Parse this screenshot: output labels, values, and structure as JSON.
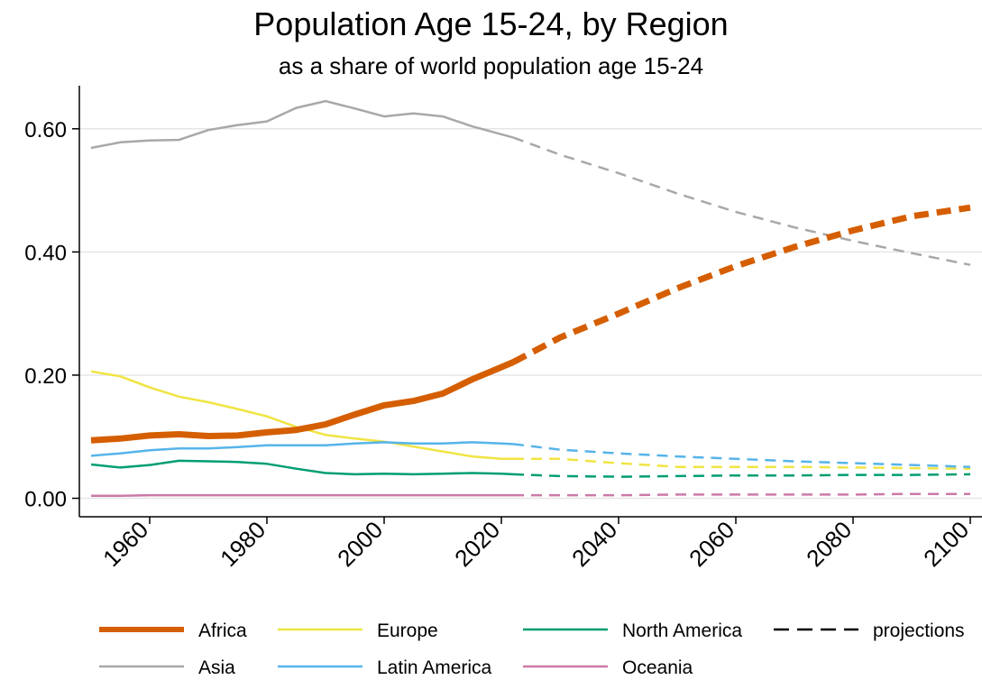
{
  "chart_data": {
    "type": "line",
    "title": "Population Age 15-24, by Region",
    "subtitle": "as a share of world population age 15-24",
    "xlim": [
      1948,
      2102
    ],
    "ylim": [
      -0.03,
      0.67
    ],
    "xticks": [
      1960,
      1980,
      2000,
      2020,
      2040,
      2060,
      2080,
      2100
    ],
    "yticks": [
      0.0,
      0.2,
      0.4,
      0.6
    ],
    "ytick_labels": [
      "0.00",
      "0.20",
      "0.40",
      "0.60"
    ],
    "grid": "horizontal",
    "legend": "bottom",
    "projection_start": 2022,
    "series": [
      {
        "name": "Africa",
        "color": "#d55e00",
        "width": 7,
        "x": [
          1950,
          1955,
          1960,
          1965,
          1970,
          1975,
          1980,
          1985,
          1990,
          1995,
          2000,
          2005,
          2010,
          2015,
          2020,
          2022,
          2030,
          2040,
          2050,
          2060,
          2070,
          2080,
          2090,
          2100
        ],
        "values": [
          0.094,
          0.097,
          0.102,
          0.104,
          0.101,
          0.102,
          0.107,
          0.111,
          0.12,
          0.136,
          0.151,
          0.158,
          0.17,
          0.193,
          0.213,
          0.221,
          0.261,
          0.3,
          0.341,
          0.377,
          0.408,
          0.435,
          0.458,
          0.472
        ]
      },
      {
        "name": "Asia",
        "color": "#a8a8a8",
        "width": 2.5,
        "x": [
          1950,
          1955,
          1960,
          1965,
          1970,
          1975,
          1980,
          1985,
          1990,
          1995,
          2000,
          2005,
          2010,
          2015,
          2020,
          2022,
          2030,
          2040,
          2050,
          2060,
          2070,
          2080,
          2090,
          2100
        ],
        "values": [
          0.569,
          0.578,
          0.581,
          0.582,
          0.598,
          0.606,
          0.612,
          0.634,
          0.645,
          0.633,
          0.62,
          0.625,
          0.62,
          0.604,
          0.591,
          0.586,
          0.558,
          0.528,
          0.495,
          0.465,
          0.44,
          0.418,
          0.398,
          0.379
        ]
      },
      {
        "name": "Europe",
        "color": "#f0e442",
        "width": 2.5,
        "x": [
          1950,
          1955,
          1960,
          1965,
          1970,
          1975,
          1980,
          1985,
          1990,
          1995,
          2000,
          2005,
          2010,
          2015,
          2020,
          2022,
          2030,
          2040,
          2050,
          2060,
          2070,
          2080,
          2090,
          2100
        ],
        "values": [
          0.206,
          0.198,
          0.18,
          0.165,
          0.156,
          0.145,
          0.133,
          0.116,
          0.103,
          0.097,
          0.092,
          0.084,
          0.076,
          0.068,
          0.064,
          0.064,
          0.064,
          0.057,
          0.051,
          0.051,
          0.051,
          0.05,
          0.049,
          0.048
        ]
      },
      {
        "name": "Latin America",
        "color": "#56b4e9",
        "width": 2.5,
        "x": [
          1950,
          1955,
          1960,
          1965,
          1970,
          1975,
          1980,
          1985,
          1990,
          1995,
          2000,
          2005,
          2010,
          2015,
          2020,
          2022,
          2030,
          2040,
          2050,
          2060,
          2070,
          2080,
          2090,
          2100
        ],
        "values": [
          0.069,
          0.073,
          0.078,
          0.081,
          0.081,
          0.083,
          0.086,
          0.086,
          0.086,
          0.089,
          0.091,
          0.089,
          0.089,
          0.091,
          0.089,
          0.088,
          0.079,
          0.073,
          0.068,
          0.064,
          0.06,
          0.057,
          0.054,
          0.051
        ]
      },
      {
        "name": "North America",
        "color": "#009e73",
        "width": 2.5,
        "x": [
          1950,
          1955,
          1960,
          1965,
          1970,
          1975,
          1980,
          1985,
          1990,
          1995,
          2000,
          2005,
          2010,
          2015,
          2020,
          2022,
          2030,
          2040,
          2050,
          2060,
          2070,
          2080,
          2090,
          2100
        ],
        "values": [
          0.055,
          0.05,
          0.054,
          0.061,
          0.06,
          0.059,
          0.056,
          0.048,
          0.041,
          0.039,
          0.04,
          0.039,
          0.04,
          0.041,
          0.04,
          0.039,
          0.036,
          0.035,
          0.036,
          0.037,
          0.037,
          0.038,
          0.038,
          0.039
        ]
      },
      {
        "name": "Oceania",
        "color": "#cc79a7",
        "width": 2.5,
        "x": [
          1950,
          1955,
          1960,
          1965,
          1970,
          1975,
          1980,
          1985,
          1990,
          1995,
          2000,
          2005,
          2010,
          2015,
          2020,
          2022,
          2030,
          2040,
          2050,
          2060,
          2070,
          2080,
          2090,
          2100
        ],
        "values": [
          0.004,
          0.004,
          0.005,
          0.005,
          0.005,
          0.005,
          0.005,
          0.005,
          0.005,
          0.005,
          0.005,
          0.005,
          0.005,
          0.005,
          0.005,
          0.005,
          0.005,
          0.005,
          0.006,
          0.006,
          0.006,
          0.006,
          0.007,
          0.007
        ]
      }
    ],
    "legend_items": [
      {
        "label": "Africa",
        "color": "#d55e00",
        "style": "solid",
        "width": 6
      },
      {
        "label": "Europe",
        "color": "#f0e442",
        "style": "solid",
        "width": 2.5
      },
      {
        "label": "North America",
        "color": "#009e73",
        "style": "solid",
        "width": 2.5
      },
      {
        "label": "projections",
        "color": "#000000",
        "style": "dashed",
        "width": 2.5
      },
      {
        "label": "Asia",
        "color": "#a8a8a8",
        "style": "solid",
        "width": 2.5
      },
      {
        "label": "Latin America",
        "color": "#56b4e9",
        "style": "solid",
        "width": 2.5
      },
      {
        "label": "Oceania",
        "color": "#cc79a7",
        "style": "solid",
        "width": 2.5
      }
    ]
  }
}
